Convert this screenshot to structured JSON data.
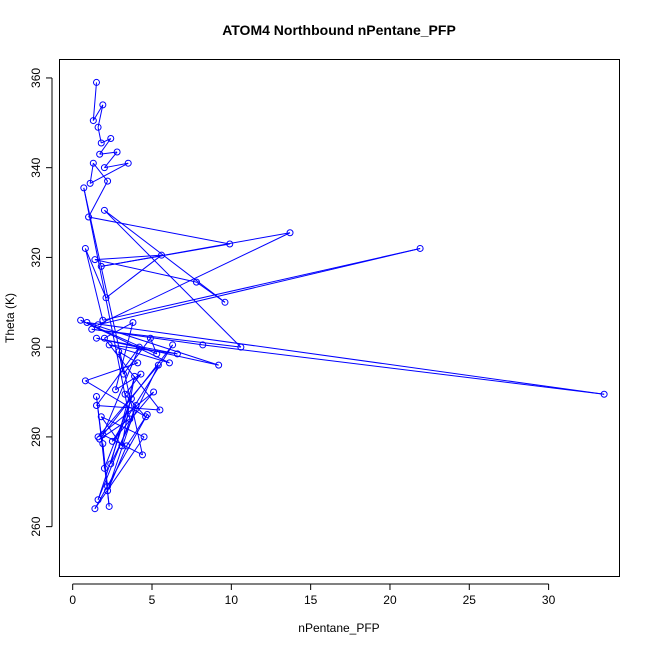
{
  "chart_data": {
    "type": "line",
    "title": "ATOM4 Northbound nPentane_PFP",
    "xlabel": "nPentane_PFP",
    "ylabel": "Theta (K)",
    "xlim": [
      -0.8,
      34.5
    ],
    "ylim": [
      249,
      364
    ],
    "xticks": [
      "0",
      "5",
      "10",
      "15",
      "20",
      "25",
      "30"
    ],
    "yticks": [
      "260",
      "280",
      "300",
      "320",
      "340",
      "360"
    ],
    "grid": false,
    "legend": "none",
    "line_color": "#0000ff",
    "marker": "open-circle",
    "series": [
      {
        "x": [
          1.5,
          1.3,
          1.9,
          1.6,
          1.8,
          2.4,
          1.7,
          2.8,
          2.0,
          3.5,
          1.1,
          1.3,
          2.2,
          1.0,
          9.9,
          1.8,
          13.7,
          1.6,
          21.9,
          1.9,
          0.8,
          2.1,
          5.6,
          1.4,
          7.8,
          9.6,
          2.0,
          10.6,
          1.2,
          8.2,
          33.5,
          0.9,
          9.2,
          1.5,
          6.6,
          2.3,
          6.1,
          0.5,
          5.3,
          4.9,
          3.2,
          2.9,
          4.1,
          0.8,
          4.6,
          3.3,
          4.3,
          2.7,
          3.8,
          2.0,
          5.5,
          1.5,
          4.2,
          1.9,
          4.4,
          0.7,
          3.6,
          1.7,
          6.3,
          2.5,
          5.1,
          1.6,
          5.4,
          2.4,
          3.9,
          3.1,
          1.8,
          4.5,
          1.4,
          4.7,
          3.4,
          2.2,
          4.0,
          1.6,
          3.7,
          2.0,
          1.9,
          2.3,
          1.5,
          2.2
        ],
        "y": [
          359,
          350.5,
          354,
          349,
          345.5,
          346.5,
          343,
          343.5,
          340,
          341,
          336.5,
          341,
          337,
          329,
          323,
          318,
          325.5,
          305,
          322,
          306,
          322,
          311,
          320.5,
          319.5,
          314.5,
          310,
          330.5,
          300,
          304,
          300.5,
          289.5,
          305.5,
          296,
          302,
          298.5,
          300.5,
          296.5,
          306,
          298.5,
          302,
          294,
          299,
          296.5,
          292.5,
          284.5,
          289.5,
          294,
          290.5,
          305.5,
          302,
          286,
          287,
          300,
          280.5,
          276,
          335.5,
          284,
          279.5,
          300.5,
          279,
          290,
          280,
          296,
          274,
          293.5,
          278,
          284.5,
          280,
          264,
          285,
          278,
          268,
          287,
          266,
          288.5,
          273,
          278.5,
          264.5,
          289,
          269
        ]
      }
    ]
  }
}
